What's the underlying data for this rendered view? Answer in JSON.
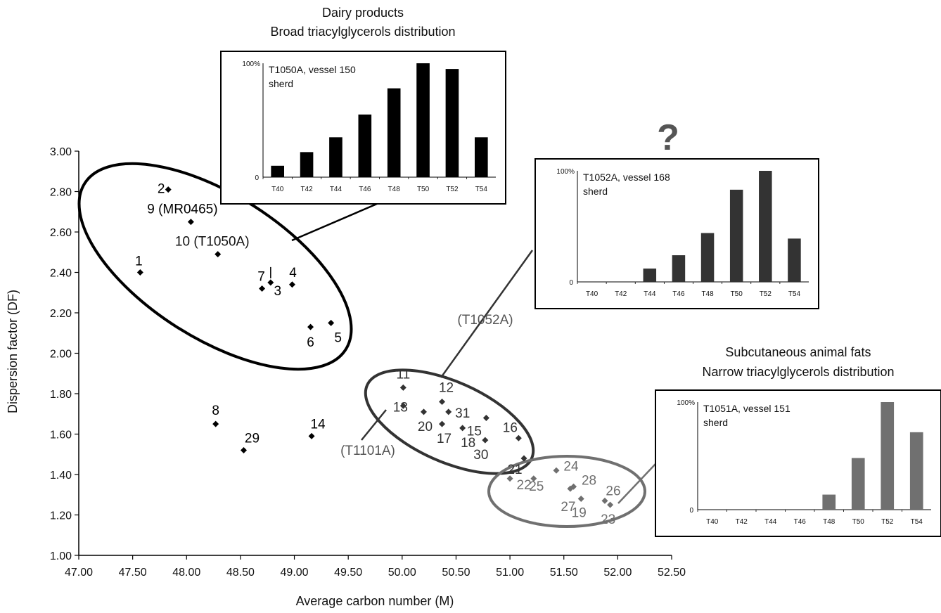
{
  "chart_data": {
    "type": "scatter",
    "xlabel": "Average carbon number (M)",
    "ylabel": "Dispersion factor (DF)",
    "xlim": [
      47.0,
      52.5
    ],
    "ylim": [
      1.0,
      3.0
    ],
    "xticks": [
      "47.00",
      "47.50",
      "48.00",
      "48.50",
      "49.00",
      "49.50",
      "50.00",
      "50.50",
      "51.00",
      "51.50",
      "52.00",
      "52.50"
    ],
    "yticks": [
      "1.00",
      "1.20",
      "1.40",
      "1.60",
      "1.80",
      "2.00",
      "2.20",
      "2.40",
      "2.60",
      "2.80",
      "3.00"
    ],
    "points": [
      {
        "label": "1",
        "x": 47.57,
        "y": 2.4,
        "group": "dairy"
      },
      {
        "label": "2",
        "x": 47.83,
        "y": 2.81,
        "group": "dairy"
      },
      {
        "label": "9 (MR0465)",
        "x": 48.04,
        "y": 2.65,
        "group": "dairy"
      },
      {
        "label": "10 (T1050A)",
        "x": 48.29,
        "y": 2.49,
        "group": "dairy"
      },
      {
        "label": "7",
        "x": 48.7,
        "y": 2.32,
        "group": "dairy"
      },
      {
        "label": "3",
        "x": 48.78,
        "y": 2.35,
        "group": "dairy"
      },
      {
        "label": "4",
        "x": 48.98,
        "y": 2.34,
        "group": "dairy"
      },
      {
        "label": "6",
        "x": 49.15,
        "y": 2.13,
        "group": "dairy"
      },
      {
        "label": "5",
        "x": 49.34,
        "y": 2.15,
        "group": "dairy"
      },
      {
        "label": "8",
        "x": 48.27,
        "y": 1.65,
        "group": "other"
      },
      {
        "label": "29",
        "x": 48.53,
        "y": 1.52,
        "group": "other"
      },
      {
        "label": "14",
        "x": 49.16,
        "y": 1.59,
        "group": "other"
      },
      {
        "label": "11",
        "x": 50.01,
        "y": 1.83,
        "group": "mixed"
      },
      {
        "label": "13",
        "x": 50.01,
        "y": 1.74,
        "group": "mixed"
      },
      {
        "label": "20",
        "x": 50.2,
        "y": 1.71,
        "group": "mixed"
      },
      {
        "label": "12",
        "x": 50.37,
        "y": 1.76,
        "group": "mixed"
      },
      {
        "label": "31",
        "x": 50.43,
        "y": 1.71,
        "group": "mixed"
      },
      {
        "label": "17",
        "x": 50.37,
        "y": 1.65,
        "group": "mixed"
      },
      {
        "label": "18",
        "x": 50.56,
        "y": 1.63,
        "group": "mixed"
      },
      {
        "label": "15",
        "x": 50.78,
        "y": 1.68,
        "group": "mixed"
      },
      {
        "label": "30",
        "x": 50.77,
        "y": 1.57,
        "group": "mixed"
      },
      {
        "label": "16",
        "x": 51.08,
        "y": 1.58,
        "group": "mixed"
      },
      {
        "label": "21",
        "x": 51.13,
        "y": 1.48,
        "group": "mixed"
      },
      {
        "label": "22",
        "x": 51.0,
        "y": 1.38,
        "group": "fat"
      },
      {
        "label": "25",
        "x": 51.22,
        "y": 1.38,
        "group": "fat"
      },
      {
        "label": "24",
        "x": 51.43,
        "y": 1.42,
        "group": "fat"
      },
      {
        "label": "27",
        "x": 51.56,
        "y": 1.33,
        "group": "fat"
      },
      {
        "label": "28",
        "x": 51.59,
        "y": 1.34,
        "group": "fat"
      },
      {
        "label": "19",
        "x": 51.66,
        "y": 1.28,
        "group": "fat"
      },
      {
        "label": "26",
        "x": 51.88,
        "y": 1.27,
        "group": "fat"
      },
      {
        "label": "23",
        "x": 51.93,
        "y": 1.25,
        "group": "fat"
      }
    ],
    "annotations": {
      "t1052a": "(T1052A)",
      "t1101a": "(T1101A)",
      "question": "?"
    },
    "insets": [
      {
        "id": "dairy",
        "heading1": "Dairy products",
        "heading2": "Broad triacylglycerols distribution",
        "label1": "T1050A, vessel 150",
        "label2": "sherd",
        "ymax_label": "100%",
        "ymin_label": "0",
        "categories": [
          "T40",
          "T42",
          "T44",
          "T46",
          "T48",
          "T50",
          "T52",
          "T54"
        ],
        "values": [
          10,
          22,
          35,
          55,
          78,
          100,
          95,
          35
        ],
        "color": "#000000"
      },
      {
        "id": "unknown",
        "heading1": "",
        "heading2": "",
        "label1": "T1052A, vessel 168",
        "label2": "sherd",
        "ymax_label": "100%",
        "ymin_label": "0",
        "categories": [
          "T40",
          "T42",
          "T44",
          "T46",
          "T48",
          "T50",
          "T52",
          "T54"
        ],
        "values": [
          0,
          0,
          12,
          24,
          44,
          83,
          100,
          39
        ],
        "color": "#333333"
      },
      {
        "id": "fats",
        "heading1": "Subcutaneous animal fats",
        "heading2": "Narrow triacylglycerols distribution",
        "label1": "T1051A, vessel 151",
        "label2": "sherd",
        "ymax_label": "100%",
        "ymin_label": "0",
        "categories": [
          "T40",
          "T42",
          "T44",
          "T46",
          "T48",
          "T50",
          "T52",
          "T54"
        ],
        "values": [
          0,
          0,
          0,
          0,
          14,
          48,
          100,
          72
        ],
        "color": "#707070"
      }
    ]
  }
}
